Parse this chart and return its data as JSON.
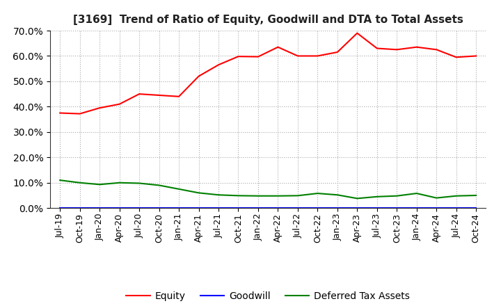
{
  "title": "[3169]  Trend of Ratio of Equity, Goodwill and DTA to Total Assets",
  "x_labels": [
    "Jul-19",
    "Oct-19",
    "Jan-20",
    "Apr-20",
    "Jul-20",
    "Oct-20",
    "Jan-21",
    "Apr-21",
    "Jul-21",
    "Oct-21",
    "Jan-22",
    "Apr-22",
    "Jul-22",
    "Oct-22",
    "Jan-23",
    "Apr-23",
    "Jul-23",
    "Oct-23",
    "Jan-24",
    "Apr-24",
    "Jul-24",
    "Oct-24"
  ],
  "equity": [
    0.375,
    0.372,
    0.395,
    0.41,
    0.45,
    0.445,
    0.44,
    0.52,
    0.565,
    0.598,
    0.597,
    0.635,
    0.6,
    0.6,
    0.615,
    0.69,
    0.63,
    0.625,
    0.635,
    0.625,
    0.595,
    0.6
  ],
  "goodwill": [
    0.0,
    0.0,
    0.0,
    0.0,
    0.0,
    0.0,
    0.0,
    0.0,
    0.0,
    0.0,
    0.0,
    0.0,
    0.0,
    0.0,
    0.0,
    0.0,
    0.0,
    0.0,
    0.0,
    0.0,
    0.0,
    0.0
  ],
  "dta": [
    0.11,
    0.1,
    0.093,
    0.1,
    0.098,
    0.09,
    0.075,
    0.06,
    0.052,
    0.049,
    0.048,
    0.048,
    0.049,
    0.058,
    0.052,
    0.038,
    0.045,
    0.048,
    0.058,
    0.04,
    0.048,
    0.05
  ],
  "equity_color": "#ff0000",
  "goodwill_color": "#0000ff",
  "dta_color": "#008000",
  "ylim": [
    0.0,
    0.7
  ],
  "yticks": [
    0.0,
    0.1,
    0.2,
    0.3,
    0.4,
    0.5,
    0.6,
    0.7
  ],
  "background_color": "#ffffff",
  "grid_color": "#aaaaaa",
  "title_fontsize": 11,
  "tick_fontsize": 10,
  "xtick_fontsize": 9,
  "legend_labels": [
    "Equity",
    "Goodwill",
    "Deferred Tax Assets"
  ],
  "legend_fontsize": 10
}
